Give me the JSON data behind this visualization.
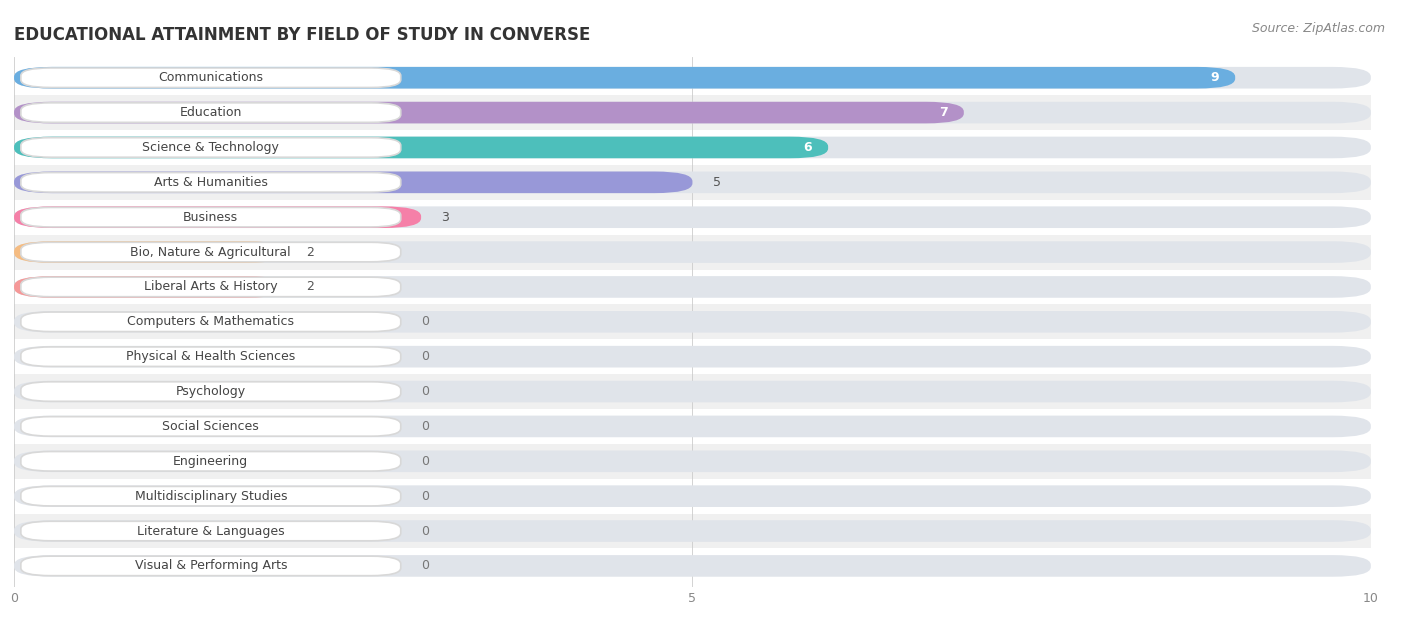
{
  "title": "EDUCATIONAL ATTAINMENT BY FIELD OF STUDY IN CONVERSE",
  "source": "Source: ZipAtlas.com",
  "categories": [
    "Communications",
    "Education",
    "Science & Technology",
    "Arts & Humanities",
    "Business",
    "Bio, Nature & Agricultural",
    "Liberal Arts & History",
    "Computers & Mathematics",
    "Physical & Health Sciences",
    "Psychology",
    "Social Sciences",
    "Engineering",
    "Multidisciplinary Studies",
    "Literature & Languages",
    "Visual & Performing Arts"
  ],
  "values": [
    9,
    7,
    6,
    5,
    3,
    2,
    2,
    0,
    0,
    0,
    0,
    0,
    0,
    0,
    0
  ],
  "bar_colors": [
    "#6aaee0",
    "#b391c8",
    "#4dbfbb",
    "#9898d8",
    "#f580a8",
    "#f5bc82",
    "#f59898",
    "#90b8e8",
    "#b8a0d8",
    "#4dc8c8",
    "#a8b0e8",
    "#f598b0",
    "#f5c098",
    "#f5a0a0",
    "#a0b8f0"
  ],
  "label_bg_colors": [
    "#6aaee0",
    "#b391c8",
    "#4dbfbb",
    "#9898d8",
    "#f580a8",
    "#f5bc82",
    "#f59898",
    "#90b8e8",
    "#b8a0d8",
    "#4dc8c8",
    "#a8b0e8",
    "#f598b0",
    "#f5c098",
    "#f5a0a0",
    "#a0b8f0"
  ],
  "xlim": [
    0,
    10
  ],
  "xticks": [
    0,
    5,
    10
  ],
  "row_colors": [
    "#ffffff",
    "#f0f0f0"
  ],
  "background_color": "#ffffff",
  "bar_bg_color": "#e8e8e8",
  "title_fontsize": 12,
  "label_fontsize": 9,
  "value_fontsize": 9,
  "source_fontsize": 9
}
